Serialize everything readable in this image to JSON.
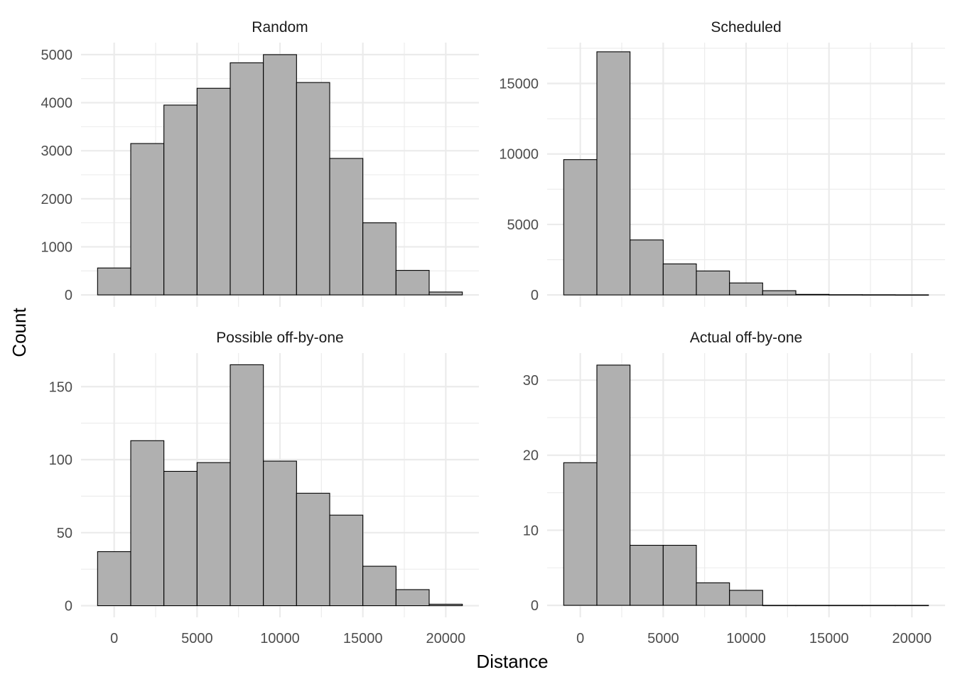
{
  "chart_data": {
    "type": "bar",
    "subtype": "histogram-facets",
    "xlabel": "Distance",
    "ylabel": "Count",
    "bin_width": 2000,
    "bin_centers": [
      0,
      2000,
      4000,
      6000,
      8000,
      10000,
      12000,
      14000,
      16000,
      18000,
      20000
    ],
    "x_ticks": [
      0,
      5000,
      10000,
      15000,
      20000
    ],
    "xlim": [
      -2000,
      22000
    ],
    "grid": true,
    "bar_fill": "#b0b0b0",
    "bar_stroke": "#000000",
    "grid_color": "#ebebeb",
    "panels": [
      {
        "title": "Random",
        "values": [
          560,
          3150,
          3950,
          4300,
          4830,
          5000,
          4420,
          2840,
          1500,
          510,
          60
        ],
        "y_ticks": [
          0,
          1000,
          2000,
          3000,
          4000,
          5000
        ],
        "ylim": [
          -250,
          5250
        ]
      },
      {
        "title": "Scheduled",
        "values": [
          9600,
          17250,
          3900,
          2200,
          1700,
          850,
          300,
          40,
          15,
          10,
          5
        ],
        "y_ticks": [
          0,
          5000,
          10000,
          15000
        ],
        "ylim": [
          -850,
          17900
        ]
      },
      {
        "title": "Possible off-by-one",
        "values": [
          37,
          113,
          92,
          98,
          165,
          99,
          77,
          62,
          27,
          11,
          1
        ],
        "y_ticks": [
          0,
          50,
          100,
          150
        ],
        "ylim": [
          -8,
          173
        ]
      },
      {
        "title": "Actual off-by-one",
        "values": [
          19,
          32,
          8,
          8,
          3,
          2,
          0,
          0,
          0,
          0,
          0
        ],
        "y_ticks": [
          0,
          10,
          20,
          30
        ],
        "ylim": [
          -1.6,
          33.6
        ]
      }
    ]
  }
}
